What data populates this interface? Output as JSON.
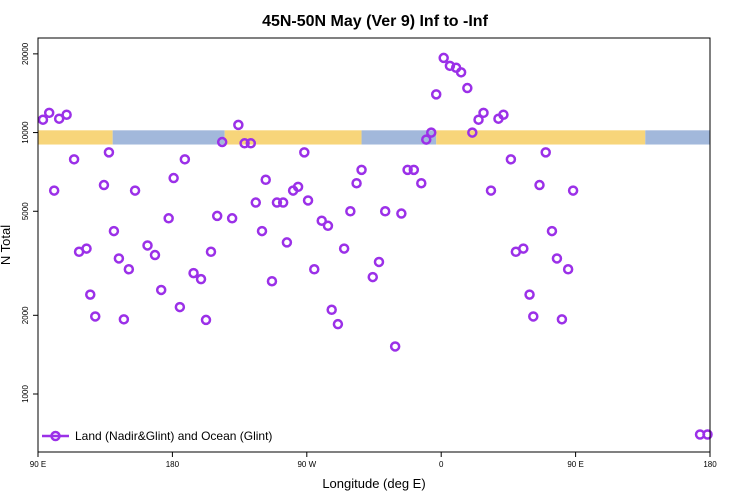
{
  "chart_data": {
    "type": "scatter",
    "title": "45N-50N May (Ver 9)   Inf to -Inf",
    "xlabel": "Longitude (deg E)",
    "ylabel": "N Total",
    "xlim": [
      -90,
      180
    ],
    "ylim": [
      600,
      23000
    ],
    "y_scale": "log",
    "x_ticks": [
      {
        "value": -90,
        "label": "90 E"
      },
      {
        "value": -36,
        "label": "180"
      },
      {
        "value": 18,
        "label": "90 W"
      },
      {
        "value": 72,
        "label": "0"
      },
      {
        "value": 126,
        "label": "90 E"
      },
      {
        "value": 180,
        "label": "180"
      }
    ],
    "y_ticks": [
      {
        "value": 1000,
        "label": "1000"
      },
      {
        "value": 2000,
        "label": "2000"
      },
      {
        "value": 5000,
        "label": "5000"
      },
      {
        "value": 10000,
        "label": "10000"
      },
      {
        "value": 20000,
        "label": "20000"
      }
    ],
    "legend": {
      "position": "bottom-left",
      "label": "Land (Nadir&Glint) and Ocean (Glint)"
    },
    "grid": false,
    "surface_band": {
      "y_range": [
        9000,
        10200
      ],
      "land_color": "#f7d57a",
      "ocean_color": "#a2b8db",
      "segments": [
        {
          "type": "land",
          "x": [
            -90,
            -60
          ]
        },
        {
          "type": "ocean",
          "x": [
            -60,
            -15
          ]
        },
        {
          "type": "land",
          "x": [
            -15,
            40
          ]
        },
        {
          "type": "ocean",
          "x": [
            40,
            70
          ]
        },
        {
          "type": "land",
          "x": [
            70,
            154
          ]
        },
        {
          "type": "ocean",
          "x": [
            154,
            180
          ]
        }
      ]
    },
    "series": [
      {
        "name": "Land (Nadir&Glint) and Ocean (Glint)",
        "color": "#9b30e8",
        "marker": "open-circle",
        "points": [
          [
            -88,
            11200
          ],
          [
            -85.5,
            11900
          ],
          [
            -83.5,
            6000
          ],
          [
            -81.5,
            11300
          ],
          [
            -78.5,
            11700
          ],
          [
            -75.5,
            7900
          ],
          [
            -73.5,
            3500
          ],
          [
            -70.5,
            3600
          ],
          [
            -69,
            2400
          ],
          [
            -67,
            1980
          ],
          [
            -63.5,
            6300
          ],
          [
            -61.5,
            8400
          ],
          [
            -59.5,
            4200
          ],
          [
            -57.5,
            3300
          ],
          [
            -55.5,
            1930
          ],
          [
            -53.5,
            3000
          ],
          [
            -51,
            6000
          ],
          [
            -46,
            3700
          ],
          [
            -43,
            3400
          ],
          [
            -40.5,
            2500
          ],
          [
            -37.5,
            4700
          ],
          [
            -35.5,
            6700
          ],
          [
            -33,
            2150
          ],
          [
            -31,
            7900
          ],
          [
            -27.5,
            2900
          ],
          [
            -24.5,
            2750
          ],
          [
            -22.5,
            1920
          ],
          [
            -20.5,
            3500
          ],
          [
            -18,
            4800
          ],
          [
            -16,
            9200
          ],
          [
            -12,
            4700
          ],
          [
            -9.5,
            10700
          ],
          [
            -7,
            9100
          ],
          [
            -4.5,
            9100
          ],
          [
            -2.5,
            5400
          ],
          [
            0,
            4200
          ],
          [
            1.5,
            6600
          ],
          [
            4,
            2700
          ],
          [
            6,
            5400
          ],
          [
            8.5,
            5400
          ],
          [
            10,
            3800
          ],
          [
            12.5,
            6000
          ],
          [
            14.5,
            6200
          ],
          [
            17,
            8400
          ],
          [
            18.5,
            5500
          ],
          [
            21,
            3000
          ],
          [
            24,
            4600
          ],
          [
            26.5,
            4400
          ],
          [
            28,
            2100
          ],
          [
            30.5,
            1850
          ],
          [
            33,
            3600
          ],
          [
            35.5,
            5000
          ],
          [
            38,
            6400
          ],
          [
            40,
            7200
          ],
          [
            44.5,
            2800
          ],
          [
            47,
            3200
          ],
          [
            49.5,
            5000
          ],
          [
            53.5,
            1520
          ],
          [
            56,
            4900
          ],
          [
            58.5,
            7200
          ],
          [
            61,
            7200
          ],
          [
            64,
            6400
          ],
          [
            66,
            9400
          ],
          [
            68,
            10000
          ],
          [
            70,
            14000
          ],
          [
            73,
            19300
          ],
          [
            75.5,
            18000
          ],
          [
            78,
            17700
          ],
          [
            80,
            17000
          ],
          [
            82.5,
            14800
          ],
          [
            84.5,
            10000
          ],
          [
            87,
            11200
          ],
          [
            89,
            11900
          ],
          [
            92,
            6000
          ],
          [
            95,
            11300
          ],
          [
            97,
            11700
          ],
          [
            100,
            7900
          ],
          [
            102,
            3500
          ],
          [
            105,
            3600
          ],
          [
            107.5,
            2400
          ],
          [
            109,
            1980
          ],
          [
            111.5,
            6300
          ],
          [
            114,
            8400
          ],
          [
            116.5,
            4200
          ],
          [
            118.5,
            3300
          ],
          [
            120.5,
            1930
          ],
          [
            123,
            3000
          ],
          [
            125,
            6000
          ],
          [
            176,
            700
          ],
          [
            179,
            700
          ]
        ]
      }
    ]
  }
}
